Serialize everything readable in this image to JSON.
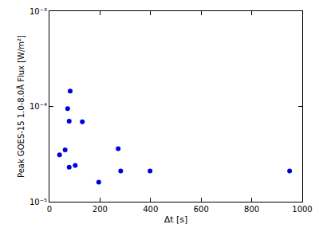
{
  "chart_data": {
    "type": "scatter",
    "x_label": "Δt [s]",
    "y_label": "Peak GOES-15 1.0-8.0Å Flux [W/m²]",
    "x": [
      40,
      62,
      72,
      78,
      82,
      78,
      102,
      130,
      195,
      272,
      282,
      398,
      950
    ],
    "values": [
      3.1e-05,
      3.5e-05,
      9.5e-05,
      7e-05,
      0.000145,
      2.3e-05,
      2.4e-05,
      6.9e-05,
      1.6e-05,
      3.6e-05,
      2.1e-05,
      2.1e-05,
      2.1e-05
    ],
    "color": "#0000dd",
    "marker": "circle",
    "log": "y",
    "xlim": [
      0,
      1000
    ],
    "xticks": [
      0,
      200,
      400,
      600,
      800,
      1000
    ],
    "ylim": [
      1e-05,
      0.001
    ],
    "yticks": [
      {
        "value": 1e-05,
        "label": "10⁻⁵"
      },
      {
        "value": 0.0001,
        "label": "10⁻⁴"
      },
      {
        "value": 0.001,
        "label": "10⁻³"
      }
    ],
    "grid": false
  }
}
